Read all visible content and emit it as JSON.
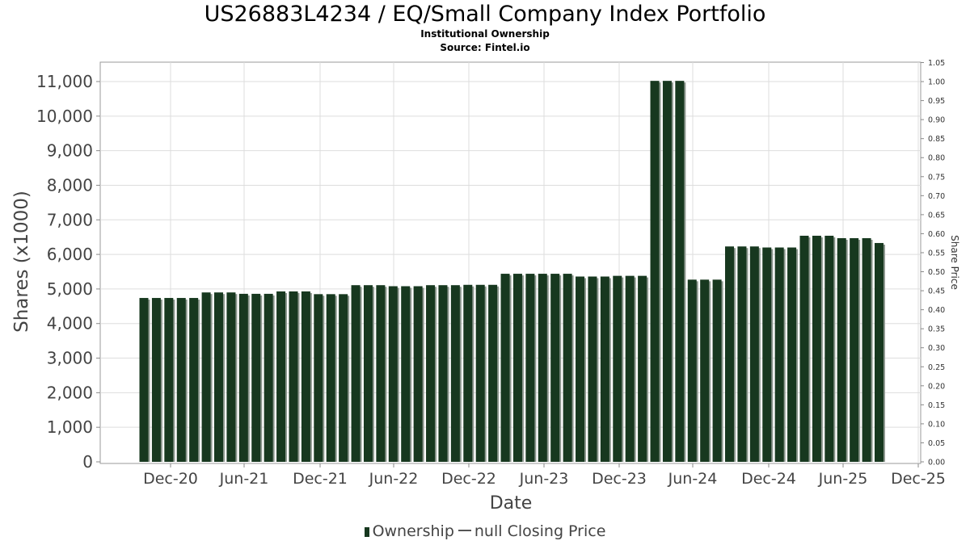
{
  "chart_data": {
    "type": "bar",
    "title": "US26883L4234 / EQ/Small Company Index Portfolio",
    "subtitle": "Institutional Ownership",
    "source": "Source: Fintel.io",
    "xlabel": "Date",
    "ylabel": "Shares (x1000)",
    "y2label": "Share Price",
    "ylim": [
      0,
      11500
    ],
    "y2lim": [
      0,
      1.05
    ],
    "y_ticks": [
      "0",
      "1,000",
      "2,000",
      "3,000",
      "4,000",
      "5,000",
      "6,000",
      "7,000",
      "8,000",
      "9,000",
      "10,000",
      "11,000"
    ],
    "y2_ticks": [
      "0.00",
      "0.05",
      "0.10",
      "0.15",
      "0.20",
      "0.25",
      "0.30",
      "0.35",
      "0.40",
      "0.45",
      "0.50",
      "0.55",
      "0.60",
      "0.65",
      "0.70",
      "0.75",
      "0.80",
      "0.85",
      "0.90",
      "0.95",
      "1.00",
      "1.05"
    ],
    "x_ticks": [
      "Dec-20",
      "Jun-21",
      "Dec-21",
      "Jun-22",
      "Dec-22",
      "Jun-23",
      "Dec-23",
      "Jun-24",
      "Dec-24",
      "Jun-25",
      "Dec-25"
    ],
    "grid": true,
    "legend_position": "bottom",
    "colors": {
      "bar": "#17381f",
      "bar_shadow": "#8c978e",
      "line": "#555555",
      "grid": "#dddddd"
    },
    "series": [
      {
        "name": "Ownership",
        "values": [
          4740,
          4740,
          4740,
          4740,
          4740,
          4900,
          4900,
          4900,
          4860,
          4860,
          4860,
          4930,
          4930,
          4930,
          4850,
          4850,
          4850,
          5110,
          5110,
          5110,
          5080,
          5080,
          5080,
          5110,
          5110,
          5110,
          5120,
          5120,
          5120,
          5440,
          5440,
          5440,
          5440,
          5440,
          5440,
          5360,
          5360,
          5360,
          5380,
          5380,
          5380,
          11020,
          11020,
          11020,
          5270,
          5270,
          5270,
          6230,
          6230,
          6230,
          6200,
          6200,
          6200,
          6540,
          6540,
          6540,
          6470,
          6470,
          6470,
          6330
        ]
      }
    ],
    "legend": [
      {
        "name": "Ownership",
        "marker": "bar"
      },
      {
        "name": "null Closing Price",
        "marker": "line"
      }
    ]
  }
}
